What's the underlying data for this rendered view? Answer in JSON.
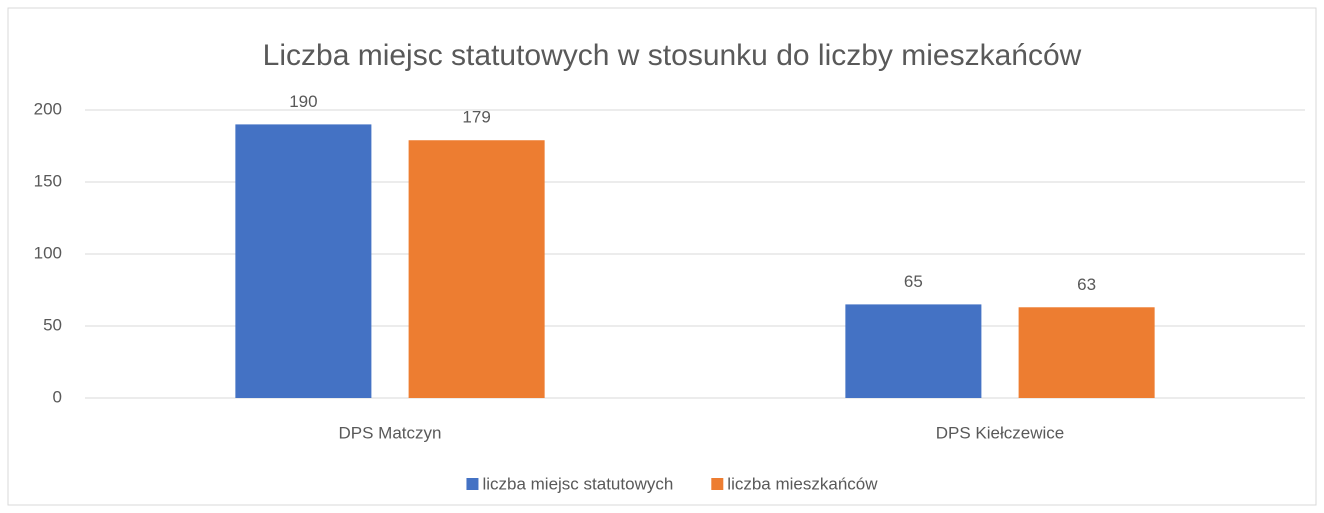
{
  "chart_data": {
    "type": "bar",
    "title": "Liczba miejsc statutowych w stosunku do liczby mieszkańców",
    "categories": [
      "DPS Matczyn",
      "DPS Kiełczewice"
    ],
    "series": [
      {
        "name": "liczba miejsc statutowych",
        "color": "#4472c4",
        "values": [
          190,
          65
        ]
      },
      {
        "name": "liczba mieszkańców",
        "color": "#ed7d31",
        "values": [
          179,
          63
        ]
      }
    ],
    "ylim": [
      0,
      200
    ],
    "yticks": [
      0,
      50,
      100,
      150,
      200
    ],
    "grid": true,
    "legend": "bottom"
  }
}
